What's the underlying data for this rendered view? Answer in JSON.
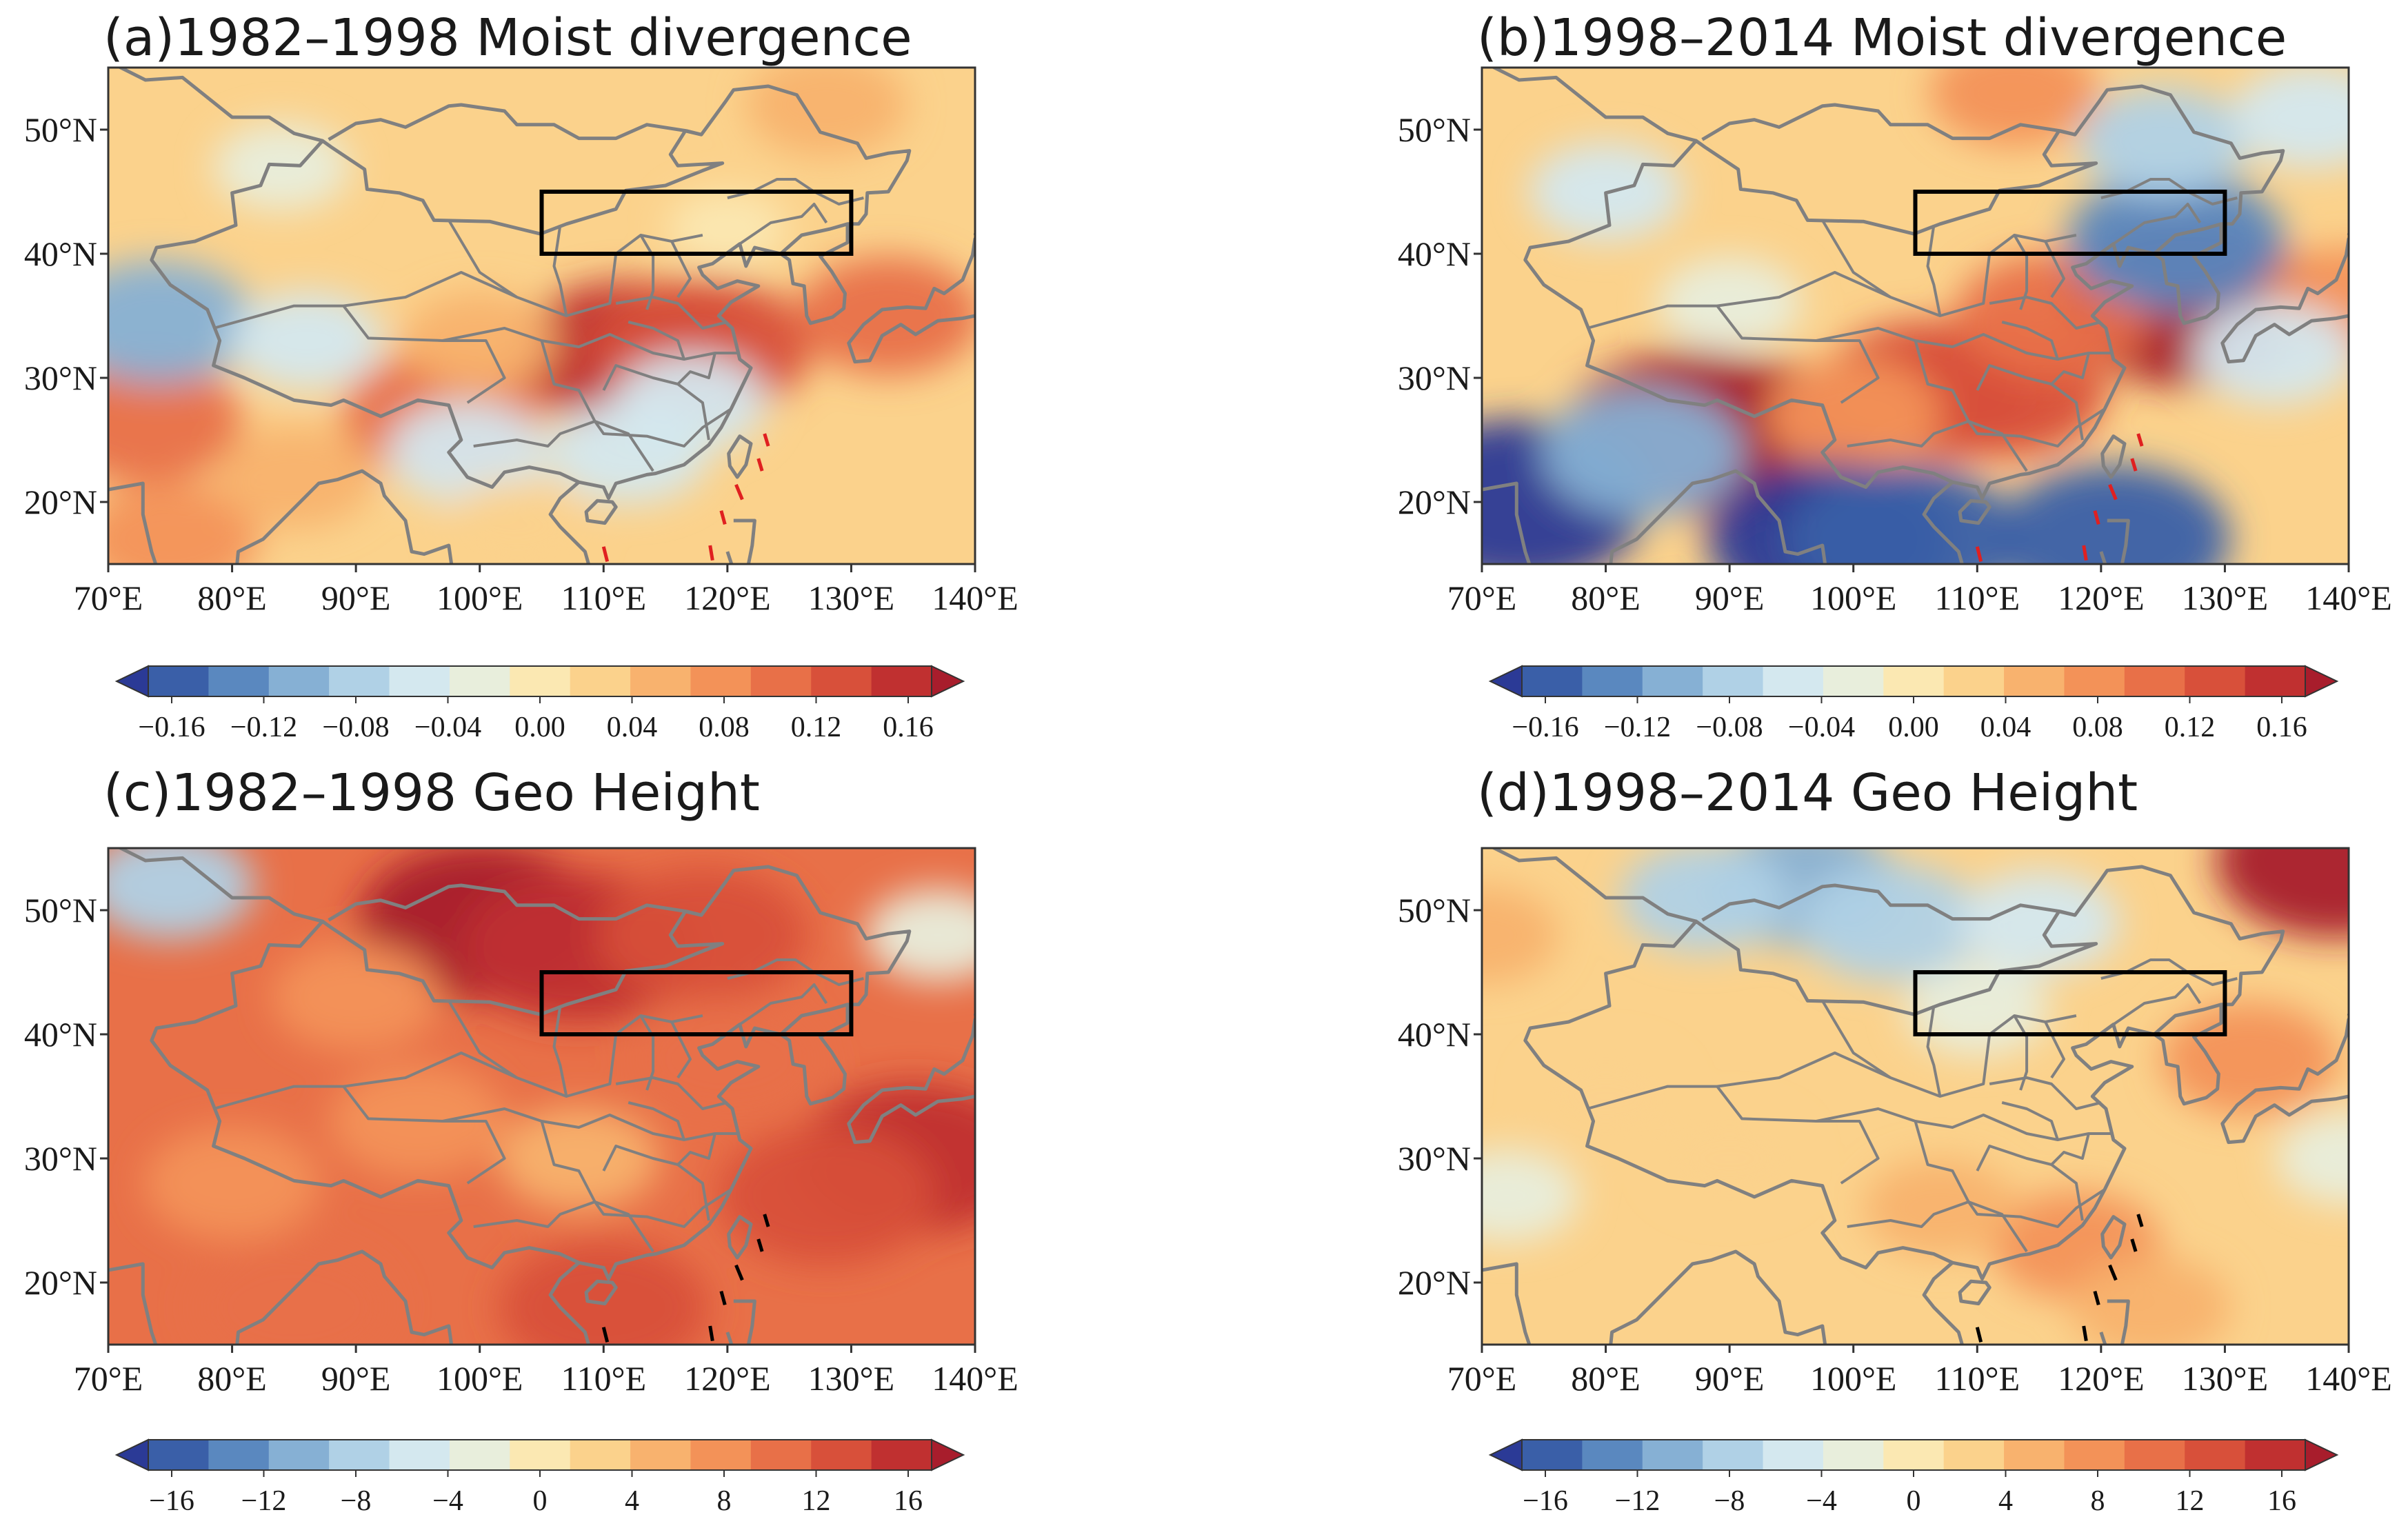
{
  "colors": {
    "levels": [
      "#2b3a96",
      "#3a5fa8",
      "#5a88bf",
      "#86b0d4",
      "#b0d1e6",
      "#d4e8ef",
      "#e8eedc",
      "#fbe8b2",
      "#fbd28c",
      "#f8b26e",
      "#f39258",
      "#e87048",
      "#d8503a",
      "#c03030",
      "#a81d2c"
    ],
    "land_outline": "#808080",
    "box": "#000000",
    "dashed_a": "#e02020",
    "dashed_c": "#000000"
  },
  "panels": [
    {
      "key": "a",
      "title": "(a)1982–1998 Moist divergence",
      "variable": "moist divergence",
      "period": "1982–1998",
      "colorbar_ticks": [
        "−0.16",
        "−0.12",
        "−0.08",
        "−0.04",
        "0.00",
        "0.04",
        "0.08",
        "0.12",
        "0.16"
      ]
    },
    {
      "key": "b",
      "title": "(b)1998–2014 Moist divergence",
      "variable": "moist divergence",
      "period": "1998–2014",
      "colorbar_ticks": [
        "−0.16",
        "−0.12",
        "−0.08",
        "−0.04",
        "0.00",
        "0.04",
        "0.08",
        "0.12",
        "0.16"
      ]
    },
    {
      "key": "c",
      "title": "(c)1982–1998 Geo Height",
      "variable": "geopotential height",
      "period": "1982–1998",
      "colorbar_ticks": [
        "−16",
        "−12",
        "−8",
        "−4",
        "0",
        "4",
        "8",
        "12",
        "16"
      ]
    },
    {
      "key": "d",
      "title": "(d)1998–2014 Geo Height",
      "variable": "geopotential height",
      "period": "1998–2014",
      "colorbar_ticks": [
        "−16",
        "−12",
        "−8",
        "−4",
        "0",
        "4",
        "8",
        "12",
        "16"
      ]
    }
  ],
  "chart_data": [
    {
      "type": "heatmap",
      "title": "(a)1982–1998 Moist divergence",
      "x_ticks": [
        "70°E",
        "80°E",
        "90°E",
        "100°E",
        "110°E",
        "120°E",
        "130°E",
        "140°E"
      ],
      "y_ticks": [
        "20°N",
        "30°N",
        "40°N",
        "50°N"
      ],
      "xlim": [
        70,
        140
      ],
      "ylim": [
        15,
        55
      ],
      "region_box": {
        "lon": [
          105,
          130
        ],
        "lat": [
          40,
          45
        ]
      },
      "colorbar_range": [
        -0.16,
        0.16
      ],
      "colorbar_step": 0.02,
      "anomalies": [
        {
          "lon": 112,
          "lat": 32,
          "value": 0.13
        },
        {
          "lon": 118,
          "lat": 32.5,
          "value": 0.12
        },
        {
          "lon": 97,
          "lat": 27,
          "value": 0.1
        },
        {
          "lon": 73,
          "lat": 26.5,
          "value": 0.09
        },
        {
          "lon": 75,
          "lat": 17,
          "value": 0.07
        },
        {
          "lon": 133,
          "lat": 35,
          "value": 0.08
        },
        {
          "lon": 128,
          "lat": 52,
          "value": 0.05
        },
        {
          "lon": 100,
          "lat": 33,
          "value": 0.04
        },
        {
          "lon": 85,
          "lat": 22,
          "value": 0.05
        },
        {
          "lon": 74,
          "lat": 34.5,
          "value": -0.09
        },
        {
          "lon": 86,
          "lat": 33,
          "value": -0.04
        },
        {
          "lon": 99,
          "lat": 24,
          "value": -0.05
        },
        {
          "lon": 112,
          "lat": 24,
          "value": -0.05
        },
        {
          "lon": 117,
          "lat": 28,
          "value": -0.04
        },
        {
          "lon": 84,
          "lat": 47,
          "value": -0.02
        },
        {
          "lon": 120,
          "lat": 42,
          "value": 0.0
        },
        {
          "lon": 103,
          "lat": 18,
          "value": 0.03
        }
      ]
    },
    {
      "type": "heatmap",
      "title": "(b)1998–2014 Moist divergence",
      "x_ticks": [
        "70°E",
        "80°E",
        "90°E",
        "100°E",
        "110°E",
        "120°E",
        "130°E",
        "140°E"
      ],
      "y_ticks": [
        "20°N",
        "30°N",
        "40°N",
        "50°N"
      ],
      "xlim": [
        70,
        140
      ],
      "ylim": [
        15,
        55
      ],
      "region_box": {
        "lon": [
          105,
          130
        ],
        "lat": [
          40,
          45
        ]
      },
      "colorbar_range": [
        -0.16,
        0.16
      ],
      "colorbar_step": 0.02,
      "anomalies": [
        {
          "lon": 87,
          "lat": 25.5,
          "value": 0.17
        },
        {
          "lon": 93,
          "lat": 25,
          "value": 0.15
        },
        {
          "lon": 127,
          "lat": 36,
          "value": 0.17
        },
        {
          "lon": 106,
          "lat": 29,
          "value": 0.12
        },
        {
          "lon": 112,
          "lat": 29,
          "value": 0.11
        },
        {
          "lon": 116,
          "lat": 35,
          "value": 0.09
        },
        {
          "lon": 100,
          "lat": 27,
          "value": 0.07
        },
        {
          "lon": 113,
          "lat": 53,
          "value": 0.06
        },
        {
          "lon": 140,
          "lat": 36,
          "value": 0.07
        },
        {
          "lon": 73,
          "lat": 20,
          "value": -0.17
        },
        {
          "lon": 98,
          "lat": 17,
          "value": -0.15
        },
        {
          "lon": 104,
          "lat": 17,
          "value": -0.14
        },
        {
          "lon": 121,
          "lat": 17,
          "value": -0.14
        },
        {
          "lon": 83,
          "lat": 24,
          "value": -0.1
        },
        {
          "lon": 126,
          "lat": 41,
          "value": -0.12
        },
        {
          "lon": 80,
          "lat": 45,
          "value": -0.04
        },
        {
          "lon": 125,
          "lat": 49,
          "value": -0.06
        },
        {
          "lon": 90,
          "lat": 36,
          "value": -0.03
        },
        {
          "lon": 137,
          "lat": 51,
          "value": -0.05
        },
        {
          "lon": 134,
          "lat": 32,
          "value": -0.05
        }
      ]
    },
    {
      "type": "heatmap",
      "title": "(c)1982–1998 Geo Height",
      "x_ticks": [
        "70°E",
        "80°E",
        "90°E",
        "100°E",
        "110°E",
        "120°E",
        "130°E",
        "140°E"
      ],
      "y_ticks": [
        "20°N",
        "30°N",
        "40°N",
        "50°N"
      ],
      "xlim": [
        70,
        140
      ],
      "ylim": [
        15,
        55
      ],
      "region_box": {
        "lon": [
          105,
          130
        ],
        "lat": [
          40,
          45
        ]
      },
      "colorbar_range": [
        -16,
        16
      ],
      "colorbar_step": 2,
      "anomalies": [
        {
          "lon": 100,
          "lat": 49,
          "value": 15
        },
        {
          "lon": 108,
          "lat": 47,
          "value": 14
        },
        {
          "lon": 135,
          "lat": 30,
          "value": 14
        },
        {
          "lon": 128,
          "lat": 27,
          "value": 12
        },
        {
          "lon": 118,
          "lat": 48,
          "value": 11
        },
        {
          "lon": 85,
          "lat": 18,
          "value": 10
        },
        {
          "lon": 110,
          "lat": 18,
          "value": 11
        },
        {
          "lon": 75,
          "lat": 52,
          "value": -6
        },
        {
          "lon": 137,
          "lat": 48,
          "value": -3
        },
        {
          "lon": 90,
          "lat": 43,
          "value": 6
        },
        {
          "lon": 95,
          "lat": 33,
          "value": 7
        },
        {
          "lon": 108,
          "lat": 30,
          "value": 5
        },
        {
          "lon": 80,
          "lat": 28,
          "value": 7
        },
        {
          "lon": 120,
          "lat": 38,
          "value": 9
        }
      ]
    },
    {
      "type": "heatmap",
      "title": "(d)1998–2014 Geo Height",
      "x_ticks": [
        "70°E",
        "80°E",
        "90°E",
        "100°E",
        "110°E",
        "120°E",
        "130°E",
        "140°E"
      ],
      "y_ticks": [
        "20°N",
        "30°N",
        "40°N",
        "50°N"
      ],
      "xlim": [
        70,
        140
      ],
      "ylim": [
        15,
        55
      ],
      "region_box": {
        "lon": [
          105,
          130
        ],
        "lat": [
          40,
          45
        ]
      },
      "colorbar_range": [
        -16,
        16
      ],
      "colorbar_step": 2,
      "anomalies": [
        {
          "lon": 96,
          "lat": 52,
          "value": -9
        },
        {
          "lon": 103,
          "lat": 49,
          "value": -8
        },
        {
          "lon": 88,
          "lat": 51,
          "value": -6
        },
        {
          "lon": 115,
          "lat": 49,
          "value": -5
        },
        {
          "lon": 110,
          "lat": 42,
          "value": -3
        },
        {
          "lon": 72,
          "lat": 27,
          "value": -3
        },
        {
          "lon": 139,
          "lat": 54,
          "value": 15
        },
        {
          "lon": 132,
          "lat": 38,
          "value": 7
        },
        {
          "lon": 118,
          "lat": 23,
          "value": 6
        },
        {
          "lon": 107,
          "lat": 26,
          "value": 4
        },
        {
          "lon": 70,
          "lat": 48,
          "value": 4
        },
        {
          "lon": 124,
          "lat": 18,
          "value": 5
        },
        {
          "lon": 140,
          "lat": 30,
          "value": -3
        },
        {
          "lon": 90,
          "lat": 30,
          "value": 3
        },
        {
          "lon": 80,
          "lat": 35,
          "value": 3
        }
      ]
    }
  ]
}
